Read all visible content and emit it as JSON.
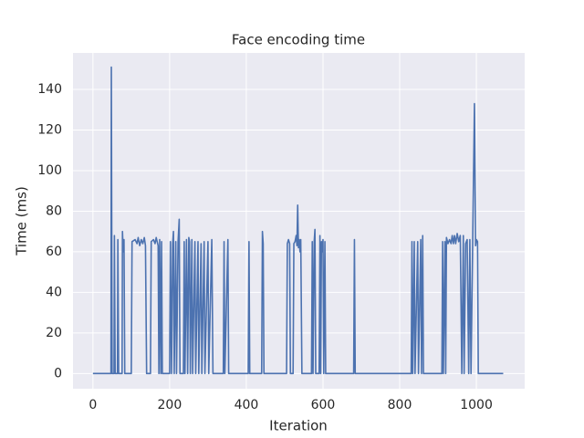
{
  "chart_data": {
    "type": "line",
    "title": "Face encoding time",
    "x_label": "Iteration",
    "y_label": "Time (ms)",
    "x": [
      0,
      47,
      48,
      50,
      55,
      56,
      58,
      64,
      65,
      67,
      76,
      77,
      79,
      81,
      83,
      100,
      102,
      110,
      115,
      118,
      122,
      126,
      130,
      134,
      137,
      140,
      150,
      152,
      158,
      162,
      165,
      170,
      172,
      174,
      177,
      179,
      181,
      200,
      202,
      205,
      208,
      210,
      212,
      216,
      218,
      222,
      225,
      227,
      236,
      238,
      240,
      244,
      247,
      250,
      252,
      254,
      258,
      260,
      266,
      268,
      274,
      276,
      282,
      284,
      290,
      292,
      300,
      302,
      310,
      313,
      340,
      342,
      344,
      352,
      354,
      405,
      407,
      409,
      440,
      442,
      444,
      446,
      505,
      507,
      510,
      513,
      515,
      522,
      524,
      527,
      530,
      532,
      534,
      536,
      538,
      540,
      542,
      545,
      570,
      572,
      574,
      577,
      579,
      581,
      590,
      592,
      594,
      596,
      598,
      600,
      602,
      605,
      607,
      680,
      682,
      684,
      830,
      832,
      834,
      838,
      840,
      847,
      849,
      855,
      857,
      860,
      862,
      910,
      912,
      914,
      918,
      920,
      922,
      926,
      930,
      934,
      937,
      940,
      943,
      946,
      950,
      954,
      958,
      962,
      966,
      968,
      972,
      976,
      980,
      983,
      986,
      995,
      998,
      1000,
      1003,
      1005,
      1070
    ],
    "series": [
      {
        "color": "#4c72b0",
        "values": [
          0,
          0,
          151,
          0,
          0,
          68,
          0,
          0,
          66,
          0,
          0,
          70,
          60,
          66,
          0,
          0,
          65,
          66,
          64,
          67,
          63,
          66,
          64,
          67,
          63,
          0,
          0,
          65,
          66,
          64,
          67,
          63,
          0,
          66,
          0,
          65,
          0,
          0,
          65,
          0,
          64,
          70,
          0,
          65,
          0,
          65,
          76,
          0,
          0,
          65,
          0,
          66,
          0,
          67,
          65,
          0,
          66,
          0,
          65,
          0,
          65,
          0,
          64,
          0,
          65,
          0,
          65,
          0,
          66,
          0,
          0,
          65,
          0,
          66,
          0,
          0,
          65,
          0,
          0,
          70,
          64,
          0,
          0,
          64,
          66,
          64,
          0,
          0,
          64,
          65,
          68,
          63,
          83,
          62,
          66,
          60,
          66,
          0,
          0,
          65,
          0,
          65,
          71,
          0,
          0,
          68,
          0,
          65,
          60,
          66,
          0,
          65,
          0,
          0,
          66,
          0,
          0,
          65,
          0,
          65,
          0,
          65,
          0,
          66,
          0,
          68,
          0,
          0,
          65,
          0,
          65,
          0,
          67,
          64,
          66,
          64,
          68,
          64,
          68,
          64,
          69,
          65,
          68,
          0,
          68,
          0,
          64,
          66,
          0,
          66,
          0,
          133,
          63,
          66,
          65,
          0,
          0
        ]
      }
    ],
    "xlim": [
      -52,
      1126
    ],
    "ylim": [
      -7.5,
      158
    ],
    "xticks": [
      0,
      200,
      400,
      600,
      800,
      1000
    ],
    "yticks": [
      0,
      20,
      40,
      60,
      80,
      100,
      120,
      140
    ],
    "grid": true
  }
}
